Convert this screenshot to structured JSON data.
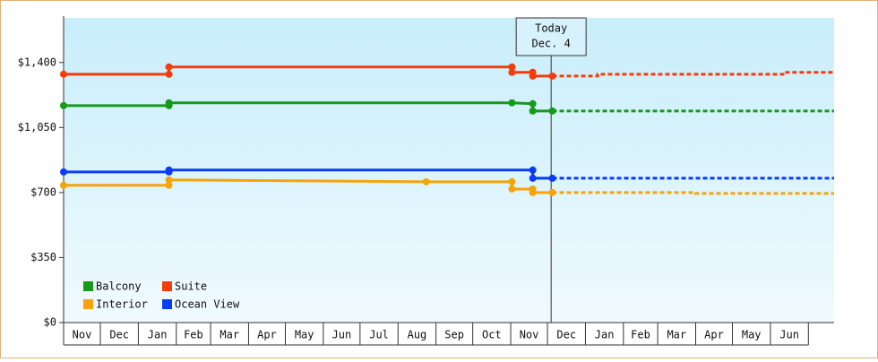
{
  "chart_data": {
    "type": "line",
    "xlim": [
      0,
      629
    ],
    "xticks": [
      {
        "value": 0,
        "label": "Nov"
      },
      {
        "value": 30,
        "label": "Dec"
      },
      {
        "value": 61,
        "label": "Jan"
      },
      {
        "value": 92,
        "label": "Feb"
      },
      {
        "value": 120,
        "label": "Mar"
      },
      {
        "value": 151,
        "label": "Apr"
      },
      {
        "value": 181,
        "label": "May"
      },
      {
        "value": 212,
        "label": "Jun"
      },
      {
        "value": 242,
        "label": "Jul"
      },
      {
        "value": 273,
        "label": "Aug"
      },
      {
        "value": 304,
        "label": "Sep"
      },
      {
        "value": 334,
        "label": "Oct"
      },
      {
        "value": 365,
        "label": "Nov"
      },
      {
        "value": 395,
        "label": "Dec"
      },
      {
        "value": 426,
        "label": "Jan"
      },
      {
        "value": 457,
        "label": "Feb"
      },
      {
        "value": 485,
        "label": "Mar"
      },
      {
        "value": 516,
        "label": "Apr"
      },
      {
        "value": 546,
        "label": "May"
      },
      {
        "value": 577,
        "label": "Jun"
      }
    ],
    "ylim": [
      0,
      1640
    ],
    "yticks": [
      {
        "value": 0,
        "label": "$0"
      },
      {
        "value": 350,
        "label": "$350"
      },
      {
        "value": 700,
        "label": "$700"
      },
      {
        "value": 1050,
        "label": "$1,050"
      },
      {
        "value": 1400,
        "label": "$1,400"
      }
    ],
    "today": {
      "x": 398,
      "lines": [
        "Today",
        "Dec. 4"
      ]
    },
    "series": [
      {
        "name": "Balcony",
        "color": "#17991a",
        "x": [
          0,
          86,
          86,
          366,
          383,
          383,
          399
        ],
        "values": [
          1168,
          1168,
          1183,
          1183,
          1178,
          1139,
          1139
        ],
        "forecast_x": [
          399,
          629
        ],
        "forecast_values": [
          1139,
          1139
        ]
      },
      {
        "name": "Suite",
        "color": "#f43c0c",
        "x": [
          0,
          86,
          86,
          366,
          366,
          383,
          383,
          399
        ],
        "values": [
          1337,
          1337,
          1376,
          1376,
          1347,
          1347,
          1327,
          1327
        ],
        "forecast_x": [
          399,
          436,
          436,
          589,
          589,
          629
        ],
        "forecast_values": [
          1327,
          1327,
          1337,
          1337,
          1347,
          1347
        ]
      },
      {
        "name": "Interior",
        "color": "#f5a40c",
        "x": [
          0,
          86,
          86,
          296,
          366,
          366,
          383,
          383,
          399
        ],
        "values": [
          739,
          739,
          768,
          758,
          758,
          719,
          719,
          700,
          700
        ],
        "forecast_x": [
          399,
          516,
          516,
          629
        ],
        "forecast_values": [
          700,
          700,
          695,
          695
        ]
      },
      {
        "name": "Ocean View",
        "color": "#0a3cf5",
        "x": [
          0,
          86,
          86,
          383,
          383,
          399
        ],
        "values": [
          811,
          811,
          821,
          821,
          777,
          777
        ],
        "forecast_x": [
          399,
          629
        ],
        "forecast_values": [
          777,
          777
        ]
      }
    ]
  }
}
